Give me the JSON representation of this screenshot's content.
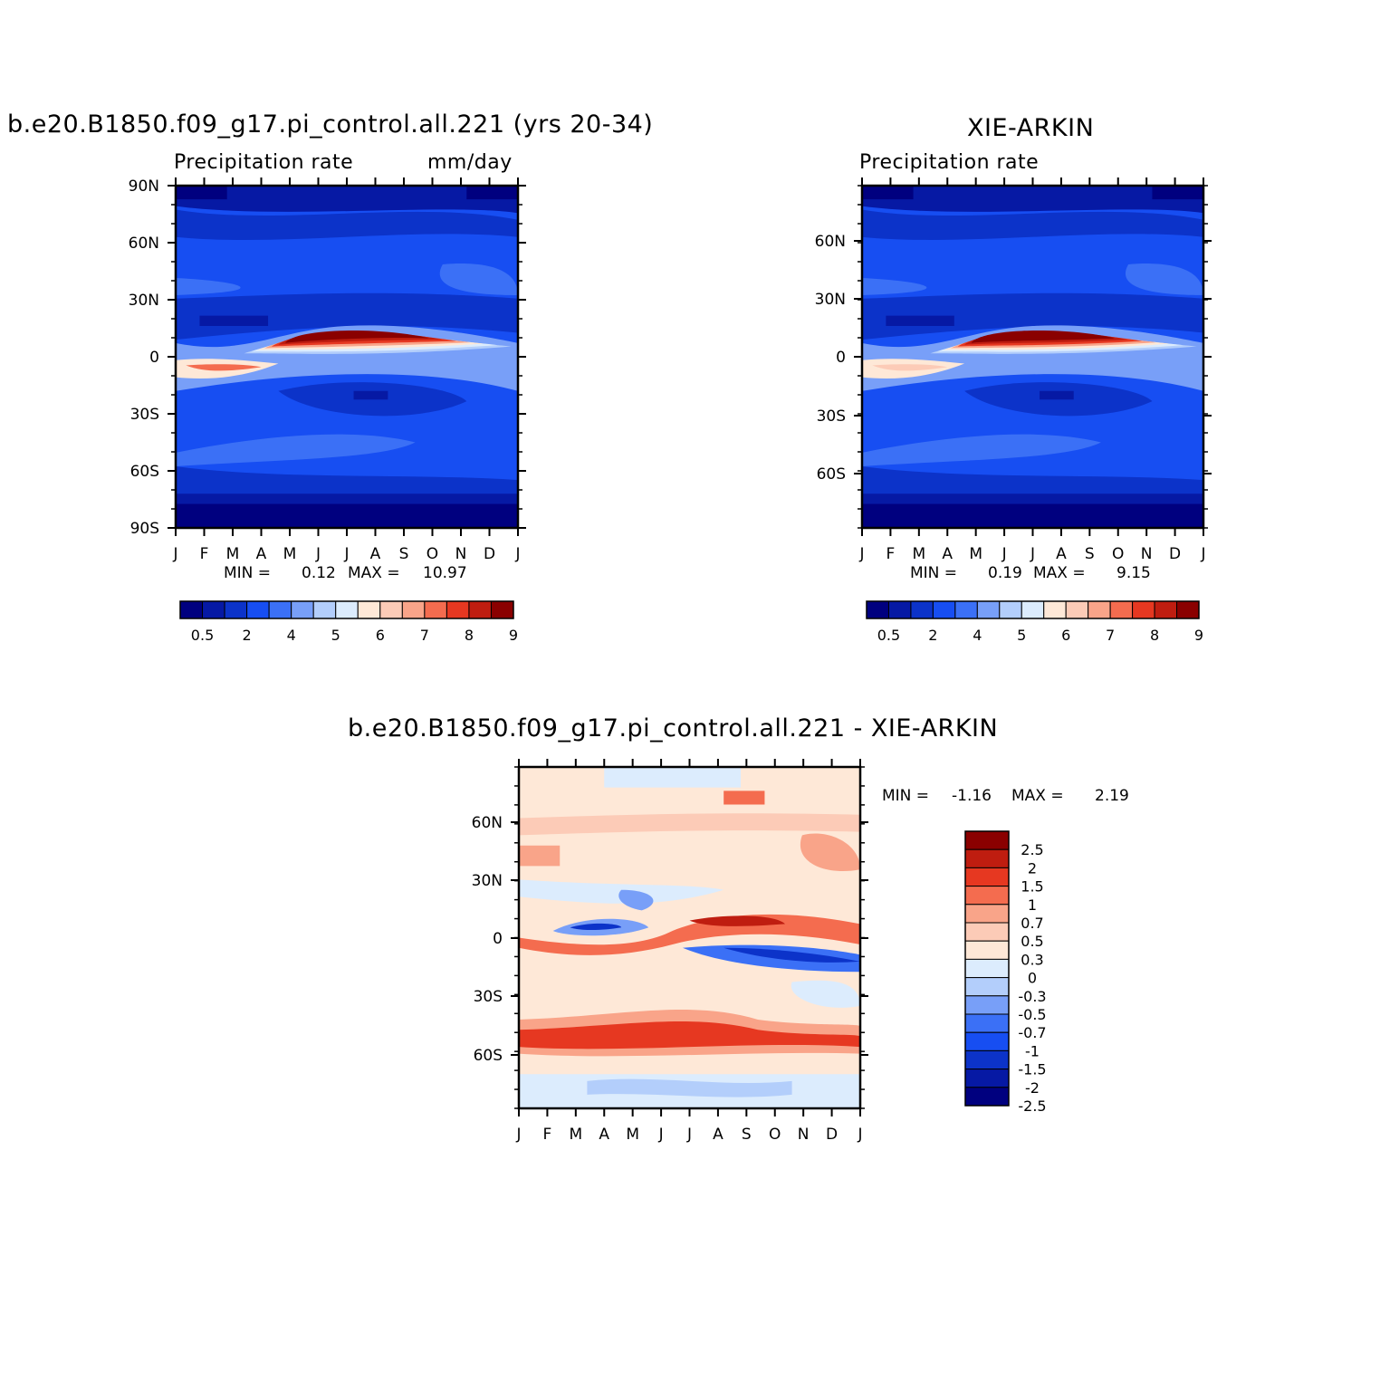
{
  "colors": {
    "abs_palette": [
      "#00007f",
      "#0619a4",
      "#0c33c9",
      "#174ef2",
      "#3b70f6",
      "#789ff8",
      "#b3cefb",
      "#dcecfd",
      "#fee8d7",
      "#fccbb7",
      "#f9a489",
      "#f46c4f",
      "#e63821",
      "#bf1d10",
      "#8a0000"
    ],
    "diff_palette": [
      "#00007f",
      "#0619a4",
      "#0c33c9",
      "#174ef2",
      "#3b70f6",
      "#789ff8",
      "#b3cefb",
      "#dcecfd",
      "#fee8d7",
      "#fccbb7",
      "#f9a489",
      "#f46c4f",
      "#e63821",
      "#bf1d10",
      "#8a0000"
    ]
  },
  "panels": {
    "model": {
      "title": "b.e20.B1850.f09_g17.pi_control.all.221 (yrs 20-34)",
      "subtitle_left": "Precipitation rate",
      "subtitle_right": "mm/day",
      "min_label": "MIN =",
      "min_value": "0.12",
      "max_label": "MAX =",
      "max_value": "10.97",
      "y_ticks": [
        "90N",
        "60N",
        "30N",
        "0",
        "30S",
        "60S",
        "90S"
      ],
      "x_ticks": [
        "J",
        "F",
        "M",
        "A",
        "M",
        "J",
        "J",
        "A",
        "S",
        "O",
        "N",
        "D",
        "J"
      ],
      "colorbar_labels": [
        "0.5",
        "2",
        "4",
        "5",
        "6",
        "7",
        "8",
        "9"
      ]
    },
    "obs": {
      "title": "XIE-ARKIN",
      "subtitle_left": "Precipitation rate",
      "min_label": "MIN =",
      "min_value": "0.19",
      "max_label": "MAX =",
      "max_value": "9.15",
      "y_ticks": [
        "60N",
        "30N",
        "0",
        "30S",
        "60S"
      ],
      "x_ticks": [
        "J",
        "F",
        "M",
        "A",
        "M",
        "J",
        "J",
        "A",
        "S",
        "O",
        "N",
        "D",
        "J"
      ],
      "colorbar_labels": [
        "0.5",
        "2",
        "4",
        "5",
        "6",
        "7",
        "8",
        "9"
      ]
    },
    "diff": {
      "title": "b.e20.B1850.f09_g17.pi_control.all.221 - XIE-ARKIN",
      "min_label": "MIN =",
      "min_value": "-1.16",
      "max_label": "MAX =",
      "max_value": "2.19",
      "y_ticks": [
        "60N",
        "30N",
        "0",
        "30S",
        "60S"
      ],
      "x_ticks": [
        "J",
        "F",
        "M",
        "A",
        "M",
        "J",
        "J",
        "A",
        "S",
        "O",
        "N",
        "D",
        "J"
      ],
      "colorbar_labels": [
        "2.5",
        "2",
        "1.5",
        "1",
        "0.7",
        "0.5",
        "0.3",
        "0",
        "-0.3",
        "-0.5",
        "-0.7",
        "-1",
        "-1.5",
        "-2",
        "-2.5"
      ]
    }
  },
  "chart_data": [
    {
      "type": "heatmap",
      "title": "b.e20.B1850.f09_g17.pi_control.all.221 (yrs 20-34)",
      "xlabel": "",
      "ylabel": "",
      "x": [
        "J",
        "F",
        "M",
        "A",
        "M",
        "J",
        "J",
        "A",
        "S",
        "O",
        "N",
        "D",
        "J"
      ],
      "y_range": [
        "90S",
        "90N"
      ],
      "units": "mm/day",
      "min": 0.12,
      "max": 10.97,
      "levels": [
        0.2,
        0.5,
        1,
        2,
        3,
        4,
        5,
        5.5,
        6,
        6.5,
        7,
        7.5,
        8,
        8.5,
        9
      ],
      "itcz_peak": {
        "month": "Aug",
        "lat": "8N",
        "value": 10.97
      }
    },
    {
      "type": "heatmap",
      "title": "XIE-ARKIN",
      "xlabel": "",
      "ylabel": "",
      "x": [
        "J",
        "F",
        "M",
        "A",
        "M",
        "J",
        "J",
        "A",
        "S",
        "O",
        "N",
        "D",
        "J"
      ],
      "min": 0.19,
      "max": 9.15,
      "levels": [
        0.2,
        0.5,
        1,
        2,
        3,
        4,
        5,
        5.5,
        6,
        6.5,
        7,
        7.5,
        8,
        8.5,
        9
      ],
      "itcz_peak": {
        "month": "Aug",
        "lat": "8N",
        "value": 9.15
      }
    },
    {
      "type": "heatmap",
      "title": "b.e20.B1850.f09_g17.pi_control.all.221 - XIE-ARKIN",
      "xlabel": "",
      "ylabel": "",
      "x": [
        "J",
        "F",
        "M",
        "A",
        "M",
        "J",
        "J",
        "A",
        "S",
        "O",
        "N",
        "D",
        "J"
      ],
      "min": -1.16,
      "max": 2.19,
      "levels": [
        -2.5,
        -2,
        -1.5,
        -1,
        -0.7,
        -0.5,
        -0.3,
        0,
        0.3,
        0.5,
        0.7,
        1,
        1.5,
        2,
        2.5
      ]
    }
  ]
}
